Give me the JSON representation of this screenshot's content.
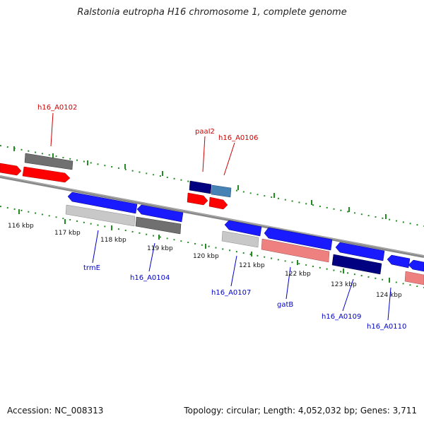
{
  "title": "Ralstonia eutropha H16 chromosome 1, complete genome",
  "footer": {
    "accession": "Accession: NC_008313",
    "summary": "Topology: circular; Length: 4,052,032 bp; Genes: 3,711"
  },
  "colors": {
    "backbone": "#888888",
    "tick": "#228b22",
    "upper_label": "#cc0000",
    "lower_label": "#0000cc",
    "red": "#ff0000",
    "light_red": "#ee8080",
    "blue": "#1a1aff",
    "navy": "#000080",
    "steel_blue": "#4682b4",
    "dark_gray": "#707070",
    "light_gray": "#c8c8c8"
  },
  "kbp_labels": [
    "116 kbp",
    "117 kbp",
    "118 kbp",
    "119 kbp",
    "120 kbp",
    "121 kbp",
    "122 kbp",
    "123 kbp",
    "124 kbp"
  ],
  "gene_labels": {
    "h16_A0102": "h16_A0102",
    "paaI2": "paaI2",
    "h16_A0106": "h16_A0106",
    "trmE": "trmE",
    "h16_A0104": "h16_A0104",
    "h16_A0107": "h16_A0107",
    "gatB": "gatB",
    "h16_A0109": "h16_A0109",
    "h16_A0110": "h16_A0110"
  }
}
